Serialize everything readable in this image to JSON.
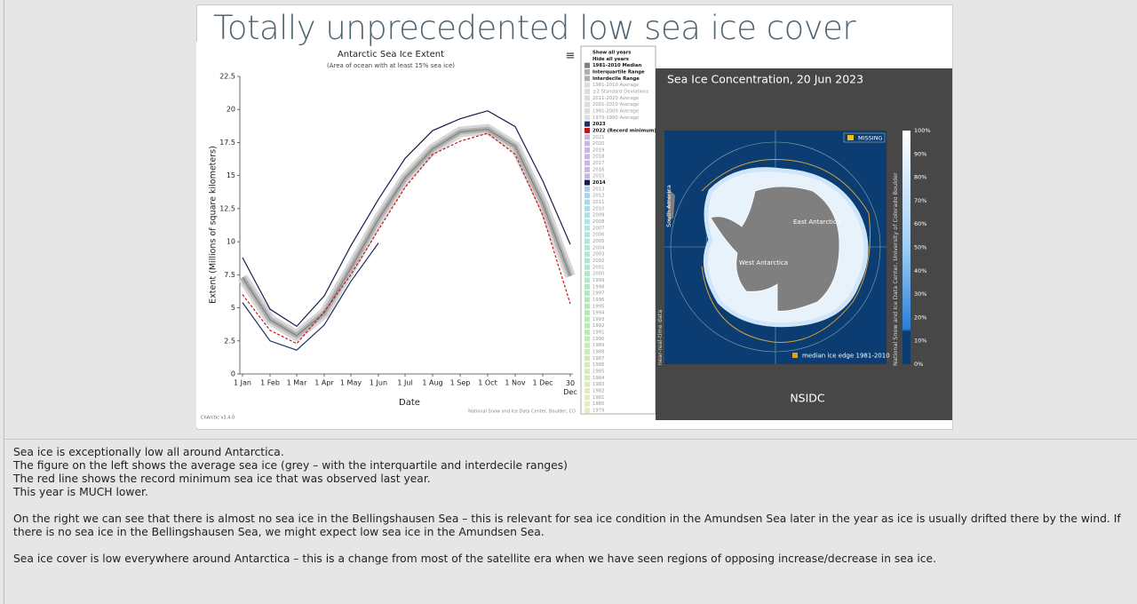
{
  "slide": {
    "title": "Totally unprecedented low sea ice cover"
  },
  "chart_data": {
    "type": "line",
    "title": "Antarctic Sea Ice Extent",
    "subtitle": "(Area of ocean with at least 15% sea ice)",
    "x_label": "Date",
    "y_label": "Extent (Millions of square kilometers)",
    "categories": [
      "1 Jan",
      "1 Feb",
      "1 Mar",
      "1 Apr",
      "1 May",
      "1 Jun",
      "1 Jul",
      "1 Aug",
      "1 Sep",
      "1 Oct",
      "1 Nov",
      "1 Dec",
      "30 Dec"
    ],
    "ylim": [
      0,
      22.5
    ],
    "yticks": [
      0,
      2.5,
      5,
      7.5,
      10,
      12.5,
      15,
      17.5,
      20,
      22.5
    ],
    "series": [
      {
        "name": "1981-2010 Median",
        "color": "#808080",
        "values": [
          7.3,
          4.1,
          2.9,
          4.6,
          8.0,
          11.7,
          14.8,
          17.0,
          18.3,
          18.5,
          17.2,
          12.9,
          7.4
        ]
      },
      {
        "name": "2014",
        "color": "#1b1b4d",
        "values": [
          8.8,
          4.9,
          3.6,
          5.9,
          9.7,
          13.2,
          16.3,
          18.4,
          19.3,
          19.9,
          18.7,
          14.6,
          9.8
        ]
      },
      {
        "name": "2022 (Record minimum)",
        "color": "#cc1111",
        "dash": true,
        "values": [
          6.0,
          3.3,
          2.3,
          4.7,
          7.5,
          10.9,
          14.1,
          16.6,
          17.6,
          18.2,
          16.6,
          12.0,
          5.3
        ]
      },
      {
        "name": "2023",
        "color": "#1f2f5f",
        "values": [
          5.4,
          2.5,
          1.8,
          3.7,
          7.0,
          9.9,
          null,
          null,
          null,
          null,
          null,
          null,
          null
        ]
      }
    ],
    "legend_controls": [
      "Show all years",
      "Hide all years"
    ],
    "legend_ranges": [
      "Interquartile Range",
      "Interdecile Range",
      "1981-2010 Average",
      "±2 Standard Deviations",
      "2011-2020 Average",
      "2001-2010 Average",
      "1991-2000 Average",
      "1979-1990 Average"
    ],
    "legend_years_before": [
      "2021",
      "2020",
      "2019",
      "2018",
      "2017",
      "2016",
      "2015"
    ],
    "legend_years_after": [
      "2013",
      "2012",
      "2011",
      "2010",
      "2009",
      "2008",
      "2007",
      "2006",
      "2005",
      "2004",
      "2003",
      "2002",
      "2001",
      "2000",
      "1999",
      "1998",
      "1997",
      "1996",
      "1995",
      "1994",
      "1993",
      "1992",
      "1991",
      "1990",
      "1989",
      "1988",
      "1987",
      "1986",
      "1985",
      "1984",
      "1983",
      "1982",
      "1981",
      "1980",
      "1979"
    ],
    "credit": "National Snow and Ice Data Center, Boulder, CO",
    "version": "ChArctic v3.4.0"
  },
  "map": {
    "title": "Sea Ice Concentration, 20 Jun 2023",
    "missing": "MISSING",
    "south_america": "South America",
    "east": "East Antarctica",
    "west": "West Antarctica",
    "median_edge": "median ice edge 1981-2010",
    "near_real_time": "near-real-time data",
    "source": "National Snow and Ice Data Center, University of Colorado Boulder",
    "logo": "NSIDC",
    "colorbar": [
      "100%",
      "90%",
      "80%",
      "70%",
      "60%",
      "50%",
      "40%",
      "30%",
      "20%",
      "10%",
      "0%"
    ]
  },
  "notes": [
    "Sea ice is exceptionally low all around Antarctica.",
    "The figure on the left shows the average sea ice (grey – with the interquartile and interdecile ranges)",
    "The red line shows the record minimum sea ice that was observed last year.",
    "This year is MUCH lower.",
    "On the right we can see that there is almost no sea ice in the Bellingshausen Sea – this is relevant for sea ice condition in the Amundsen Sea later in the year as ice is usually drifted there by the wind. If there is no sea ice in the Bellingshausen Sea, we might expect low sea ice in the Amundsen Sea.",
    "Sea ice cover is low everywhere around Antarctica – this is a change from most of the satellite era when we have seen regions of opposing increase/decrease in sea ice."
  ]
}
